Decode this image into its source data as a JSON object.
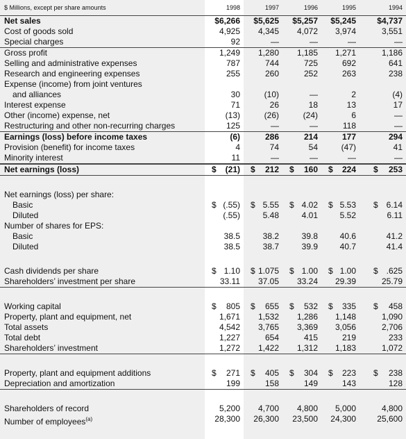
{
  "header": {
    "note": "$ Millions, except per share amounts",
    "years": [
      "1998",
      "1997",
      "1996",
      "1995",
      "1994"
    ]
  },
  "currency": "$",
  "sections": [
    {
      "rows": [
        {
          "label": "Net sales",
          "bold": true,
          "values": [
            "$6,266",
            "$5,625",
            "$5,257",
            "$5,245",
            "$4,737"
          ]
        },
        {
          "label": "Cost of goods sold",
          "values": [
            "4,925",
            "4,345",
            "4,072",
            "3,974",
            "3,551"
          ]
        },
        {
          "label": "Special charges",
          "values": [
            "92",
            "—",
            "—",
            "—",
            "—"
          ],
          "rule": true
        },
        {
          "label": "Gross profit",
          "values": [
            "1,249",
            "1,280",
            "1,185",
            "1,271",
            "1,186"
          ]
        },
        {
          "label": "Selling and administrative expenses",
          "values": [
            "787",
            "744",
            "725",
            "692",
            "641"
          ]
        },
        {
          "label": "Research and engineering expenses",
          "values": [
            "255",
            "260",
            "252",
            "263",
            "238"
          ]
        },
        {
          "label": "Expense (income) from joint ventures"
        },
        {
          "label": "and alliances",
          "indent": true,
          "values": [
            "30",
            "(10)",
            "—",
            "2",
            "(4)"
          ]
        },
        {
          "label": "Interest expense",
          "values": [
            "71",
            "26",
            "18",
            "13",
            "17"
          ]
        },
        {
          "label": "Other (income) expense, net",
          "values": [
            "(13)",
            "(26)",
            "(24)",
            "6",
            "—"
          ]
        },
        {
          "label": "Restructuring and other non-recurring charges",
          "values": [
            "125",
            "—",
            "—",
            "118",
            "—"
          ],
          "rule": true
        },
        {
          "label": "Earnings (loss) before income taxes",
          "bold": true,
          "values": [
            "(6)",
            "286",
            "214",
            "177",
            "294"
          ]
        },
        {
          "label": "Provision (benefit) for income taxes",
          "values": [
            "4",
            "74",
            "54",
            "(47)",
            "41"
          ]
        },
        {
          "label": "Minority interest",
          "values": [
            "11",
            "—",
            "—",
            "—",
            "—"
          ],
          "rule": true
        },
        {
          "label": "Net earnings (loss)",
          "bold": true,
          "sign": true,
          "values": [
            "(21)",
            "212",
            "160",
            "224",
            "253"
          ],
          "rule": true
        }
      ]
    },
    {
      "rows": [
        {
          "label": "Net earnings (loss) per share:"
        },
        {
          "label": "Basic",
          "indent": true,
          "sign": true,
          "values": [
            "(.55)",
            "5.55",
            "4.02",
            "5.53",
            "6.14"
          ]
        },
        {
          "label": "Diluted",
          "indent": true,
          "values": [
            "(.55)",
            "5.48",
            "4.01",
            "5.52",
            "6.11"
          ]
        },
        {
          "label": "Number of shares for EPS:"
        },
        {
          "label": "Basic",
          "indent": true,
          "values": [
            "38.5",
            "38.2",
            "39.8",
            "40.6",
            "41.2"
          ]
        },
        {
          "label": "Diluted",
          "indent": true,
          "values": [
            "38.5",
            "38.7",
            "39.9",
            "40.7",
            "41.4"
          ]
        }
      ]
    },
    {
      "rows": [
        {
          "label": "Cash dividends per share",
          "sign": true,
          "values": [
            "1.10",
            "1.075",
            "1.00",
            "1.00",
            ".625"
          ]
        },
        {
          "label": "Shareholders’ investment per share",
          "values": [
            "33.11",
            "37.05",
            "33.24",
            "29.39",
            "25.79"
          ],
          "rule": true
        }
      ]
    },
    {
      "rows": [
        {
          "label": "Working capital",
          "sign": true,
          "values": [
            "805",
            "655",
            "532",
            "335",
            "458"
          ]
        },
        {
          "label": "Property, plant and equipment, net",
          "values": [
            "1,671",
            "1,532",
            "1,286",
            "1,148",
            "1,090"
          ]
        },
        {
          "label": "Total assets",
          "values": [
            "4,542",
            "3,765",
            "3,369",
            "3,056",
            "2,706"
          ]
        },
        {
          "label": "Total debt",
          "values": [
            "1,227",
            "654",
            "415",
            "219",
            "233"
          ]
        },
        {
          "label": "Shareholders’ investment",
          "values": [
            "1,272",
            "1,422",
            "1,312",
            "1,183",
            "1,072"
          ],
          "rule": true
        }
      ]
    },
    {
      "rows": [
        {
          "label": "Property, plant and equipment additions",
          "sign": true,
          "values": [
            "271",
            "405",
            "304",
            "223",
            "238"
          ]
        },
        {
          "label": "Depreciation and amortization",
          "values": [
            "199",
            "158",
            "149",
            "143",
            "128"
          ],
          "rule": true
        }
      ]
    },
    {
      "rows": [
        {
          "label": "Shareholders of record",
          "values": [
            "5,200",
            "4,700",
            "4,800",
            "5,000",
            "4,800"
          ]
        },
        {
          "label": "Number of employees",
          "footnote_mark": "(a)",
          "values": [
            "28,300",
            "26,300",
            "23,500",
            "24,300",
            "25,600"
          ]
        }
      ]
    }
  ]
}
